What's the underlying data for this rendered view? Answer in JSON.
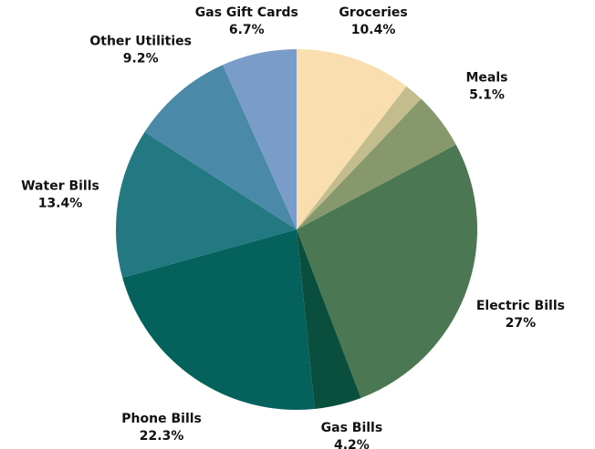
{
  "chart_data": {
    "type": "pie",
    "title": "",
    "slices": [
      {
        "label": "Groceries",
        "value": 10.4,
        "value_label": "10.4%",
        "color": "#f9deb0"
      },
      {
        "label": "",
        "value": 1.7,
        "value_label": "",
        "color": "#c3bd8e"
      },
      {
        "label": "Meals",
        "value": 5.1,
        "value_label": "5.1%",
        "color": "#87996c"
      },
      {
        "label": "Electric Bills",
        "value": 27,
        "value_label": "27%",
        "color": "#4b7852"
      },
      {
        "label": "Gas Bills",
        "value": 4.2,
        "value_label": "4.2%",
        "color": "#0a4e3d"
      },
      {
        "label": "Phone Bills",
        "value": 22.3,
        "value_label": "22.3%",
        "color": "#05615b"
      },
      {
        "label": "Water Bills",
        "value": 13.4,
        "value_label": "13.4%",
        "color": "#237981"
      },
      {
        "label": "Other Utilities",
        "value": 9.2,
        "value_label": "9.2%",
        "color": "#4a8aa8"
      },
      {
        "label": "Gas Gift Cards",
        "value": 6.7,
        "value_label": "6.7%",
        "color": "#799dc8"
      }
    ],
    "start_angle": "12 o'clock",
    "direction": "clockwise",
    "legend": "none",
    "label_placement": "outside"
  }
}
